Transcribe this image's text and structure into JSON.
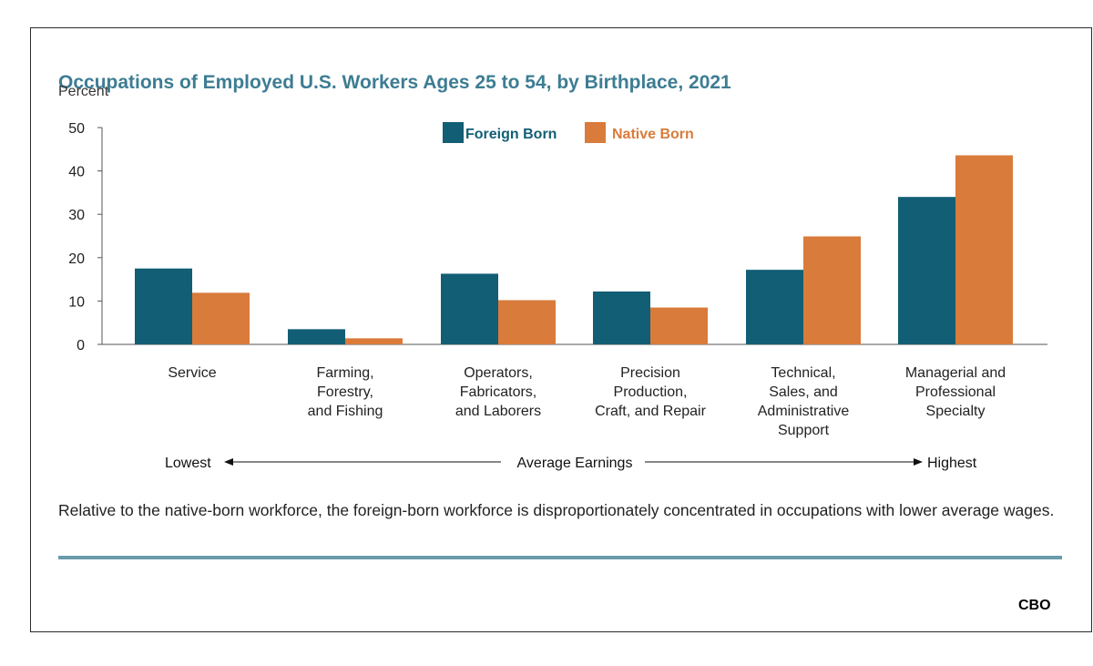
{
  "title": "Occupations of Employed U.S. Workers Ages 25 to 54, by Birthplace, 2021",
  "ylabel": "Percent",
  "caption": "Relative to the native-born workforce, the foreign-born workforce is disproportionately concentrated in occupations with lower average wages.",
  "logo": "CBO",
  "earnings_axis": {
    "low": "Lowest",
    "mid": "Average Earnings",
    "high": "Highest"
  },
  "colors": {
    "foreign": "#125e75",
    "native": "#d97b3a",
    "title": "#3d7d93",
    "rule": "#6a9cab"
  },
  "chart_data": {
    "type": "bar",
    "title": "Occupations of Employed U.S. Workers Ages 25 to 54, by Birthplace, 2021",
    "ylabel": "Percent",
    "xlabel": "",
    "ylim": [
      0,
      50
    ],
    "yticks": [
      0,
      10,
      20,
      30,
      40,
      50
    ],
    "legend": "top-center",
    "grid": false,
    "categories": [
      [
        "Service"
      ],
      [
        "Farming,",
        "Forestry,",
        "and Fishing"
      ],
      [
        "Operators,",
        "Fabricators,",
        "and Laborers"
      ],
      [
        "Precision",
        "Production,",
        "Craft, and Repair"
      ],
      [
        "Technical,",
        "Sales, and",
        "Administrative",
        "Support"
      ],
      [
        "Managerial and",
        "Professional",
        "Specialty"
      ]
    ],
    "series": [
      {
        "name": "Foreign Born",
        "values": [
          17.5,
          3.5,
          16.3,
          12.2,
          17.2,
          34.0
        ]
      },
      {
        "name": "Native Born",
        "values": [
          11.9,
          1.4,
          10.2,
          8.5,
          24.9,
          43.6
        ]
      }
    ]
  }
}
